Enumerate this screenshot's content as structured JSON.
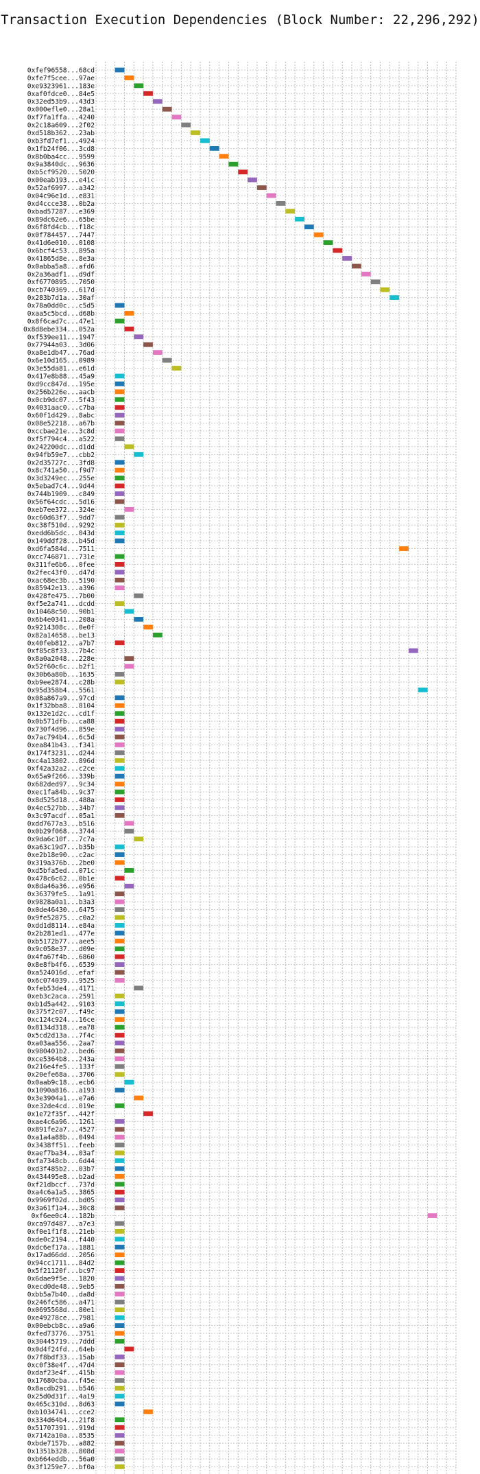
{
  "chart_data": {
    "type": "gantt",
    "title": "Transaction Execution Dependencies (Block Number: 22,296,292)",
    "xlabel": "",
    "ylabel": "",
    "xlim": [
      -2,
      36
    ],
    "x_ticks": [
      0,
      5,
      10,
      15,
      20,
      25,
      30,
      35
    ],
    "grid": true,
    "bar_width": 1,
    "palette": [
      "#1f77b4",
      "#ff7f0e",
      "#2ca02c",
      "#d62728",
      "#9467bd",
      "#8c564b",
      "#e377c2",
      "#7f7f7f",
      "#bcbd22",
      "#17becf"
    ],
    "transactions": [
      {
        "label": "0xfef96558...68cd",
        "start": 0,
        "color": "#1f77b4"
      },
      {
        "label": "0xfe7f5cee...97ae",
        "start": 1,
        "color": "#ff7f0e"
      },
      {
        "label": "0xe9323961...183e",
        "start": 2,
        "color": "#2ca02c"
      },
      {
        "label": "0xaf0fdce0...84e5",
        "start": 3,
        "color": "#d62728"
      },
      {
        "label": "0x32ed53b9...43d3",
        "start": 4,
        "color": "#9467bd"
      },
      {
        "label": "0x000efle0...28a1",
        "start": 5,
        "color": "#8c564b"
      },
      {
        "label": "0xf7fa1ffa...4240",
        "start": 6,
        "color": "#e377c2"
      },
      {
        "label": "0x2c18a609...2f02",
        "start": 7,
        "color": "#7f7f7f"
      },
      {
        "label": "0xd518b362...23ab",
        "start": 8,
        "color": "#bcbd22"
      },
      {
        "label": "0xb3fd7ef1...4924",
        "start": 9,
        "color": "#17becf"
      },
      {
        "label": "0x1fb24f06...3cd8",
        "start": 10,
        "color": "#1f77b4"
      },
      {
        "label": "0x8b0ba4cc...9599",
        "start": 11,
        "color": "#ff7f0e"
      },
      {
        "label": "0x9a3840dc...9636",
        "start": 12,
        "color": "#2ca02c"
      },
      {
        "label": "0xb5cf9520...5020",
        "start": 13,
        "color": "#d62728"
      },
      {
        "label": "0x00eab193...e41c",
        "start": 14,
        "color": "#9467bd"
      },
      {
        "label": "0x52af6997...a342",
        "start": 15,
        "color": "#8c564b"
      },
      {
        "label": "0x04c96e1d...e831",
        "start": 16,
        "color": "#e377c2"
      },
      {
        "label": "0xd4ccce38...0b2a",
        "start": 17,
        "color": "#7f7f7f"
      },
      {
        "label": "0xbad57287...e369",
        "start": 18,
        "color": "#bcbd22"
      },
      {
        "label": "0x89dc62e6...65be",
        "start": 19,
        "color": "#17becf"
      },
      {
        "label": "0x6f8fd4cb...f18c",
        "start": 20,
        "color": "#1f77b4"
      },
      {
        "label": "0x0f784457...7447",
        "start": 21,
        "color": "#ff7f0e"
      },
      {
        "label": "0x41d6e010...0108",
        "start": 22,
        "color": "#2ca02c"
      },
      {
        "label": "0x6bcf4c53...895a",
        "start": 23,
        "color": "#d62728"
      },
      {
        "label": "0x41865d8e...8e3a",
        "start": 24,
        "color": "#9467bd"
      },
      {
        "label": "0x0abba5a8...afd6",
        "start": 25,
        "color": "#8c564b"
      },
      {
        "label": "0x2a36adf1...d9df",
        "start": 26,
        "color": "#e377c2"
      },
      {
        "label": "0xf6770895...7050",
        "start": 27,
        "color": "#7f7f7f"
      },
      {
        "label": "0xcb740369...617d",
        "start": 28,
        "color": "#bcbd22"
      },
      {
        "label": "0x283b7d1a...30af",
        "start": 29,
        "color": "#17becf"
      },
      {
        "label": "0x78a0dd0c...c5d5",
        "start": 0,
        "color": "#1f77b4"
      },
      {
        "label": "0xaa5c5bcd...d68b",
        "start": 1,
        "color": "#ff7f0e"
      },
      {
        "label": "0x8f6cad7c...47e1",
        "start": 0,
        "color": "#2ca02c"
      },
      {
        "label": "0x8d8ebe334...052a",
        "start": 1,
        "color": "#d62728"
      },
      {
        "label": "0xf539ee11...1947",
        "start": 2,
        "color": "#9467bd"
      },
      {
        "label": "0x77944a03...3d06",
        "start": 3,
        "color": "#8c564b"
      },
      {
        "label": "0xa8e1db47...76ad",
        "start": 4,
        "color": "#e377c2"
      },
      {
        "label": "0x6e10d165...0989",
        "start": 5,
        "color": "#7f7f7f"
      },
      {
        "label": "0x3e55da81...e61d",
        "start": 6,
        "color": "#bcbd22"
      },
      {
        "label": "0x417e8b88...45a9",
        "start": 0,
        "color": "#17becf"
      },
      {
        "label": "0xd9cc847d...195e",
        "start": 0,
        "color": "#1f77b4"
      },
      {
        "label": "0x256b226e...aacb",
        "start": 0,
        "color": "#ff7f0e"
      },
      {
        "label": "0x0cb9dc07...5f43",
        "start": 0,
        "color": "#2ca02c"
      },
      {
        "label": "0x4031aac0...c7ba",
        "start": 0,
        "color": "#d62728"
      },
      {
        "label": "0x60f1d429...8abc",
        "start": 0,
        "color": "#9467bd"
      },
      {
        "label": "0x08e52218...a67b",
        "start": 0,
        "color": "#8c564b"
      },
      {
        "label": "0xccbae21e...3c8d",
        "start": 0,
        "color": "#e377c2"
      },
      {
        "label": "0xf5f794c4...a522",
        "start": 0,
        "color": "#7f7f7f"
      },
      {
        "label": "0x242200dc...d1dd",
        "start": 1,
        "color": "#bcbd22"
      },
      {
        "label": "0x94fb59e7...cbb2",
        "start": 2,
        "color": "#17becf"
      },
      {
        "label": "0x2d35727c...3fd8",
        "start": 0,
        "color": "#1f77b4"
      },
      {
        "label": "0x8c741a50...f9d7",
        "start": 0,
        "color": "#ff7f0e"
      },
      {
        "label": "0x3d3249ec...255e",
        "start": 0,
        "color": "#2ca02c"
      },
      {
        "label": "0x5ebad7c4...9d44",
        "start": 0,
        "color": "#d62728"
      },
      {
        "label": "0x744b1909...c849",
        "start": 0,
        "color": "#9467bd"
      },
      {
        "label": "0x56f64cdc...5d16",
        "start": 0,
        "color": "#8c564b"
      },
      {
        "label": "0xeb7ee372...324e",
        "start": 1,
        "color": "#e377c2"
      },
      {
        "label": "0xc60d63f7...9dd7",
        "start": 0,
        "color": "#7f7f7f"
      },
      {
        "label": "0xc38f510d...9292",
        "start": 0,
        "color": "#bcbd22"
      },
      {
        "label": "0xedd6b5dc...043d",
        "start": 0,
        "color": "#17becf"
      },
      {
        "label": "0x149ddf28...b45d",
        "start": 0,
        "color": "#1f77b4"
      },
      {
        "label": "0xd6fa584d...7511",
        "start": 30,
        "color": "#ff7f0e"
      },
      {
        "label": "0xcc746871...731e",
        "start": 0,
        "color": "#2ca02c"
      },
      {
        "label": "0x311fe6b6...0fee",
        "start": 0,
        "color": "#d62728"
      },
      {
        "label": "0x2fec43f0...d47d",
        "start": 0,
        "color": "#9467bd"
      },
      {
        "label": "0xac68ec3b...5190",
        "start": 0,
        "color": "#8c564b"
      },
      {
        "label": "0x85942e13...a396",
        "start": 0,
        "color": "#e377c2"
      },
      {
        "label": "0x428fe475...7b00",
        "start": 2,
        "color": "#7f7f7f"
      },
      {
        "label": "0xf5e2a741...dcdd",
        "start": 0,
        "color": "#bcbd22"
      },
      {
        "label": "0x10468c50...90b1",
        "start": 1,
        "color": "#17becf"
      },
      {
        "label": "0x6b4e0341...208a",
        "start": 2,
        "color": "#1f77b4"
      },
      {
        "label": "0x9214308c...0e0f",
        "start": 3,
        "color": "#ff7f0e"
      },
      {
        "label": "0x82a14658...be13",
        "start": 4,
        "color": "#2ca02c"
      },
      {
        "label": "0x40feb812...a7b7",
        "start": 0,
        "color": "#d62728"
      },
      {
        "label": "0xf85c8f33...7b4c",
        "start": 31,
        "color": "#9467bd"
      },
      {
        "label": "0x8a0a2048...228e",
        "start": 1,
        "color": "#8c564b"
      },
      {
        "label": "0x52f60c6c...b2f1",
        "start": 1,
        "color": "#e377c2"
      },
      {
        "label": "0x30b6a80b...1635",
        "start": 0,
        "color": "#7f7f7f"
      },
      {
        "label": "0xb9ee2874...c28b",
        "start": 0,
        "color": "#bcbd22"
      },
      {
        "label": "0x95d358b4...5561",
        "start": 32,
        "color": "#17becf"
      },
      {
        "label": "0x08a867a9...97cd",
        "start": 0,
        "color": "#1f77b4"
      },
      {
        "label": "0x1f32bba8...8104",
        "start": 0,
        "color": "#ff7f0e"
      },
      {
        "label": "0x132e1d2c...cd1f",
        "start": 0,
        "color": "#2ca02c"
      },
      {
        "label": "0x0b571dfb...ca88",
        "start": 0,
        "color": "#d62728"
      },
      {
        "label": "0x730f4d96...859e",
        "start": 0,
        "color": "#9467bd"
      },
      {
        "label": "0x7ac794b4...6c5d",
        "start": 0,
        "color": "#8c564b"
      },
      {
        "label": "0xea841b43...f341",
        "start": 0,
        "color": "#e377c2"
      },
      {
        "label": "0x174f3231...d244",
        "start": 0,
        "color": "#7f7f7f"
      },
      {
        "label": "0xc4a13802...896d",
        "start": 0,
        "color": "#bcbd22"
      },
      {
        "label": "0xf42a32a2...c2ce",
        "start": 0,
        "color": "#17becf"
      },
      {
        "label": "0x65a9f266...339b",
        "start": 0,
        "color": "#1f77b4"
      },
      {
        "label": "0x682ded97...9c34",
        "start": 0,
        "color": "#ff7f0e"
      },
      {
        "label": "0xec1fa84b...9c37",
        "start": 0,
        "color": "#2ca02c"
      },
      {
        "label": "0x8d525d18...488a",
        "start": 0,
        "color": "#d62728"
      },
      {
        "label": "0x4ec527bb...34b7",
        "start": 0,
        "color": "#9467bd"
      },
      {
        "label": "0x3c97acdf...05a1",
        "start": 0,
        "color": "#8c564b"
      },
      {
        "label": "0xdd7677a3...b516",
        "start": 1,
        "color": "#e377c2"
      },
      {
        "label": "0x0b29f068...3744",
        "start": 1,
        "color": "#7f7f7f"
      },
      {
        "label": "0x9da6c10f...7c7a",
        "start": 2,
        "color": "#bcbd22"
      },
      {
        "label": "0xa63c19d7...b35b",
        "start": 0,
        "color": "#17becf"
      },
      {
        "label": "0xe2b18e90...c2ac",
        "start": 0,
        "color": "#1f77b4"
      },
      {
        "label": "0x319a376b...2be0",
        "start": 0,
        "color": "#ff7f0e"
      },
      {
        "label": "0xd5bfa5ed...071c",
        "start": 1,
        "color": "#2ca02c"
      },
      {
        "label": "0x478c6c62...0b1e",
        "start": 0,
        "color": "#d62728"
      },
      {
        "label": "0x8da46a36...e956",
        "start": 1,
        "color": "#9467bd"
      },
      {
        "label": "0x36379fe5...1a91",
        "start": 0,
        "color": "#8c564b"
      },
      {
        "label": "0x9828a0a1...b3a3",
        "start": 0,
        "color": "#e377c2"
      },
      {
        "label": "0x0de46430...6475",
        "start": 0,
        "color": "#7f7f7f"
      },
      {
        "label": "0x9fe52875...c0a2",
        "start": 0,
        "color": "#bcbd22"
      },
      {
        "label": "0xdd1d8114...e84a",
        "start": 0,
        "color": "#17becf"
      },
      {
        "label": "0x2b281ed1...477e",
        "start": 0,
        "color": "#1f77b4"
      },
      {
        "label": "0xb5172b77...aee5",
        "start": 0,
        "color": "#ff7f0e"
      },
      {
        "label": "0x9c058e37...d09e",
        "start": 0,
        "color": "#2ca02c"
      },
      {
        "label": "0x4fa67f4b...6860",
        "start": 0,
        "color": "#d62728"
      },
      {
        "label": "0x8e8fb4f6...6539",
        "start": 0,
        "color": "#9467bd"
      },
      {
        "label": "0xa524016d...efaf",
        "start": 0,
        "color": "#8c564b"
      },
      {
        "label": "0x6c074039...9525",
        "start": 0,
        "color": "#e377c2"
      },
      {
        "label": "0xfeb53de4...4171",
        "start": 2,
        "color": "#7f7f7f"
      },
      {
        "label": "0xeb3c2aca...2591",
        "start": 0,
        "color": "#bcbd22"
      },
      {
        "label": "0xb1d5a442...9103",
        "start": 0,
        "color": "#17becf"
      },
      {
        "label": "0x375f2c07...f49c",
        "start": 0,
        "color": "#1f77b4"
      },
      {
        "label": "0xc124c924...16ce",
        "start": 0,
        "color": "#ff7f0e"
      },
      {
        "label": "0x8134d318...ea78",
        "start": 0,
        "color": "#2ca02c"
      },
      {
        "label": "0x5cd2d13a...7f4c",
        "start": 0,
        "color": "#d62728"
      },
      {
        "label": "0xa03aa556...2aa7",
        "start": 0,
        "color": "#9467bd"
      },
      {
        "label": "0x980401b2...bed6",
        "start": 0,
        "color": "#8c564b"
      },
      {
        "label": "0xce5364b8...243a",
        "start": 0,
        "color": "#e377c2"
      },
      {
        "label": "0x216e4fe5...133f",
        "start": 0,
        "color": "#7f7f7f"
      },
      {
        "label": "0x20efe68a...3706",
        "start": 0,
        "color": "#bcbd22"
      },
      {
        "label": "0x0aab9c18...ecb6",
        "start": 1,
        "color": "#17becf"
      },
      {
        "label": "0x1090a816...a193",
        "start": 0,
        "color": "#1f77b4"
      },
      {
        "label": "0x3e3904a1...e7a6",
        "start": 2,
        "color": "#ff7f0e"
      },
      {
        "label": "0xe32de4cd...019e",
        "start": 0,
        "color": "#2ca02c"
      },
      {
        "label": "0x1e72f35f...442f",
        "start": 3,
        "color": "#d62728"
      },
      {
        "label": "0xae4c6a96...1261",
        "start": 0,
        "color": "#9467bd"
      },
      {
        "label": "0x891fe2a7...4527",
        "start": 0,
        "color": "#8c564b"
      },
      {
        "label": "0xa1a4a88b...0494",
        "start": 0,
        "color": "#e377c2"
      },
      {
        "label": "0x3438ff51...feeb",
        "start": 0,
        "color": "#7f7f7f"
      },
      {
        "label": "0xaef7ba34...03af",
        "start": 0,
        "color": "#bcbd22"
      },
      {
        "label": "0xfa7348cb...6d44",
        "start": 0,
        "color": "#17becf"
      },
      {
        "label": "0xd3f485b2...03b7",
        "start": 0,
        "color": "#1f77b4"
      },
      {
        "label": "0x434495e8...b2ad",
        "start": 0,
        "color": "#ff7f0e"
      },
      {
        "label": "0xf21dbccf...737d",
        "start": 0,
        "color": "#2ca02c"
      },
      {
        "label": "0xa4c6a1a5...3865",
        "start": 0,
        "color": "#d62728"
      },
      {
        "label": "0x9969f02d...bd05",
        "start": 0,
        "color": "#9467bd"
      },
      {
        "label": "0x3a61f1a4...30c8",
        "start": 0,
        "color": "#8c564b"
      },
      {
        "label": "0xf6ee0c4...182b",
        "start": 33,
        "color": "#e377c2"
      },
      {
        "label": "0xca97d487...a7e3",
        "start": 0,
        "color": "#7f7f7f"
      },
      {
        "label": "0xf0e1f1f8...21eb",
        "start": 0,
        "color": "#bcbd22"
      },
      {
        "label": "0xde0c2194...f440",
        "start": 0,
        "color": "#17becf"
      },
      {
        "label": "0xdc6ef17a...1881",
        "start": 0,
        "color": "#1f77b4"
      },
      {
        "label": "0x17ad66dd...2056",
        "start": 0,
        "color": "#ff7f0e"
      },
      {
        "label": "0x94cc1711...84d2",
        "start": 0,
        "color": "#2ca02c"
      },
      {
        "label": "0x5f21120f...bc97",
        "start": 0,
        "color": "#d62728"
      },
      {
        "label": "0x6dae9f5e...1820",
        "start": 0,
        "color": "#9467bd"
      },
      {
        "label": "0xecd0de48...9eb5",
        "start": 0,
        "color": "#8c564b"
      },
      {
        "label": "0xbb5a7b40...da8d",
        "start": 0,
        "color": "#e377c2"
      },
      {
        "label": "0x246fc586...a471",
        "start": 0,
        "color": "#7f7f7f"
      },
      {
        "label": "0x0695568d...80e1",
        "start": 0,
        "color": "#bcbd22"
      },
      {
        "label": "0xe49278ce...7981",
        "start": 0,
        "color": "#17becf"
      },
      {
        "label": "0x00ebcb8c...a9a6",
        "start": 0,
        "color": "#1f77b4"
      },
      {
        "label": "0xfed73776...3751",
        "start": 0,
        "color": "#ff7f0e"
      },
      {
        "label": "0x30445719...7ddd",
        "start": 0,
        "color": "#2ca02c"
      },
      {
        "label": "0x0d4f24fd...64eb",
        "start": 1,
        "color": "#d62728"
      },
      {
        "label": "0x7f8bdf33...15ab",
        "start": 0,
        "color": "#9467bd"
      },
      {
        "label": "0xc0f38e4f...47d4",
        "start": 0,
        "color": "#8c564b"
      },
      {
        "label": "0xdaf23e4f...415b",
        "start": 0,
        "color": "#e377c2"
      },
      {
        "label": "0x17680cba...f45e",
        "start": 0,
        "color": "#7f7f7f"
      },
      {
        "label": "0x8acdb291...b546",
        "start": 0,
        "color": "#bcbd22"
      },
      {
        "label": "0x25d0d31f...4a19",
        "start": 0,
        "color": "#17becf"
      },
      {
        "label": "0x465c310d...8d63",
        "start": 0,
        "color": "#1f77b4"
      },
      {
        "label": "0xb1034741...cce2",
        "start": 3,
        "color": "#ff7f0e"
      },
      {
        "label": "0x334d64b4...21f8",
        "start": 0,
        "color": "#2ca02c"
      },
      {
        "label": "0x51707391...919d",
        "start": 0,
        "color": "#d62728"
      },
      {
        "label": "0x7142a10a...8535",
        "start": 0,
        "color": "#9467bd"
      },
      {
        "label": "0xbde7157b...a882",
        "start": 0,
        "color": "#8c564b"
      },
      {
        "label": "0x1351b328...808d",
        "start": 0,
        "color": "#e377c2"
      },
      {
        "label": "0xb664eddb...56a0",
        "start": 0,
        "color": "#7f7f7f"
      },
      {
        "label": "0x3f1259e7...bf0a",
        "start": 0,
        "color": "#bcbd22"
      }
    ]
  }
}
